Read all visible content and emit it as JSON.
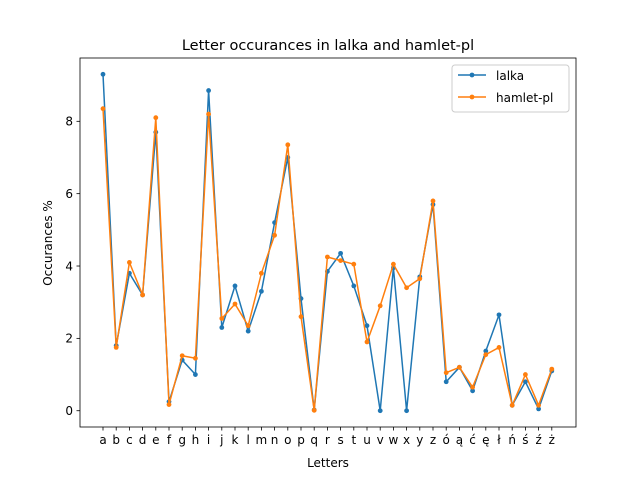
{
  "chart_data": {
    "type": "line",
    "title": "Letter occurances in lalka and hamlet-pl",
    "xlabel": "Letters",
    "ylabel": "Occurances %",
    "categories": [
      "a",
      "b",
      "c",
      "d",
      "e",
      "f",
      "g",
      "h",
      "i",
      "j",
      "k",
      "l",
      "m",
      "n",
      "o",
      "p",
      "q",
      "r",
      "s",
      "t",
      "u",
      "v",
      "w",
      "x",
      "y",
      "z",
      "ó",
      "ą",
      "ć",
      "ę",
      "ł",
      "ń",
      "ś",
      "ź",
      "ż"
    ],
    "ylim": [
      -0.45,
      9.75
    ],
    "yticks": [
      0,
      2,
      4,
      6,
      8
    ],
    "legend_position": "top-right",
    "grid": false,
    "series": [
      {
        "name": "lalka",
        "color": "#1f77b4",
        "values": [
          9.3,
          1.8,
          3.8,
          3.2,
          7.7,
          0.25,
          1.4,
          1.0,
          8.85,
          2.3,
          3.45,
          2.2,
          3.3,
          5.2,
          7.0,
          3.1,
          0.02,
          3.85,
          4.35,
          3.45,
          2.35,
          0.0,
          3.95,
          0.0,
          3.7,
          5.7,
          0.8,
          1.2,
          0.55,
          1.65,
          2.65,
          0.15,
          0.8,
          0.05,
          1.1
        ]
      },
      {
        "name": "hamlet-pl",
        "color": "#ff7f0e",
        "values": [
          8.35,
          1.75,
          4.1,
          3.2,
          8.1,
          0.17,
          1.52,
          1.45,
          8.2,
          2.55,
          2.95,
          2.35,
          3.8,
          4.85,
          7.35,
          2.6,
          0.01,
          4.25,
          4.15,
          4.05,
          1.9,
          2.9,
          4.05,
          3.4,
          3.65,
          5.8,
          1.05,
          1.2,
          0.65,
          1.55,
          1.75,
          0.15,
          1.0,
          0.15,
          1.15
        ]
      }
    ]
  }
}
